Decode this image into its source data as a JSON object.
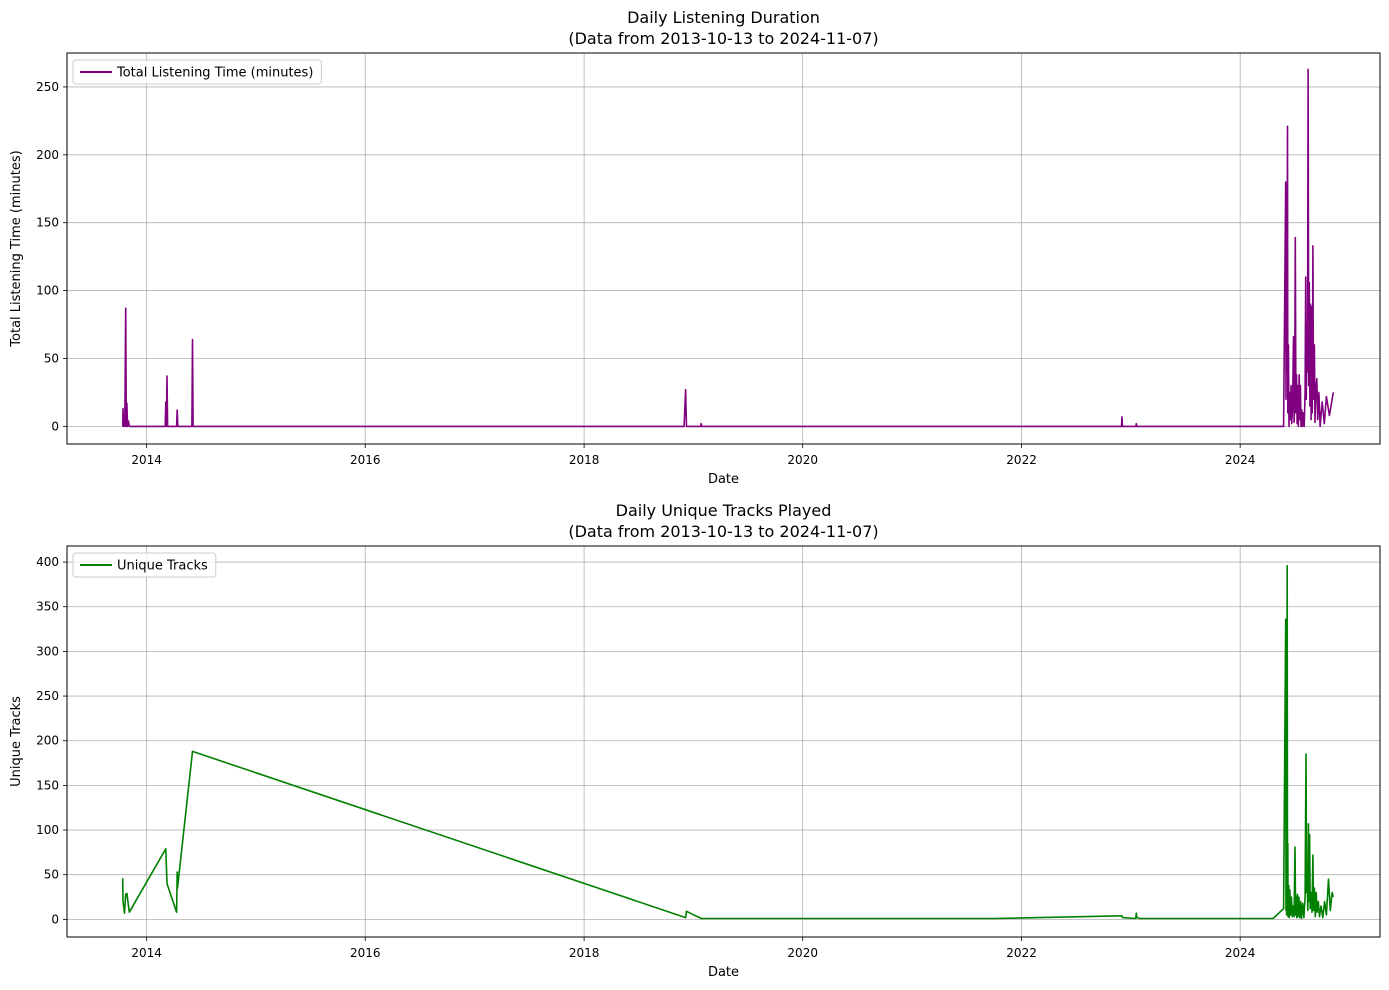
{
  "chart_data": [
    {
      "type": "line",
      "title_line1": "Daily Listening Duration",
      "title_line2": "(Data from 2013-10-13 to 2024-11-07)",
      "xlabel": "Date",
      "ylabel": "Total Listening Time (minutes)",
      "xlim": [
        "2013-04-10",
        "2025-04-12"
      ],
      "ylim": [
        -13,
        275
      ],
      "x_ticks": [
        "2014",
        "2016",
        "2018",
        "2020",
        "2022",
        "2024"
      ],
      "y_ticks": [
        0,
        50,
        100,
        150,
        200,
        250
      ],
      "grid": true,
      "legend_position": "upper left",
      "series": [
        {
          "name": "Total Listening Time (minutes)",
          "color": "#800080",
          "points": [
            [
              "2013-10-13",
              0
            ],
            [
              "2013-10-14",
              13
            ],
            [
              "2013-10-16",
              0
            ],
            [
              "2013-10-18",
              5
            ],
            [
              "2013-10-20",
              0
            ],
            [
              "2013-10-23",
              87
            ],
            [
              "2013-10-25",
              0
            ],
            [
              "2013-10-27",
              17
            ],
            [
              "2013-10-29",
              0
            ],
            [
              "2013-11-01",
              4
            ],
            [
              "2013-11-04",
              0
            ],
            [
              "2014-03-04",
              0
            ],
            [
              "2014-03-06",
              18
            ],
            [
              "2014-03-08",
              0
            ],
            [
              "2014-03-10",
              37
            ],
            [
              "2014-03-12",
              0
            ],
            [
              "2014-04-11",
              0
            ],
            [
              "2014-04-13",
              12
            ],
            [
              "2014-04-15",
              0
            ],
            [
              "2014-06-01",
              0
            ],
            [
              "2014-06-03",
              64
            ],
            [
              "2014-06-05",
              0
            ],
            [
              "2018-12-01",
              0
            ],
            [
              "2018-12-06",
              27
            ],
            [
              "2018-12-09",
              0
            ],
            [
              "2019-01-25",
              0
            ],
            [
              "2019-01-27",
              2
            ],
            [
              "2019-01-29",
              0
            ],
            [
              "2022-12-01",
              0
            ],
            [
              "2022-12-02",
              7
            ],
            [
              "2022-12-04",
              0
            ],
            [
              "2023-01-18",
              0
            ],
            [
              "2023-01-19",
              2
            ],
            [
              "2023-01-21",
              0
            ],
            [
              "2024-05-25",
              0
            ],
            [
              "2024-06-01",
              180
            ],
            [
              "2024-06-02",
              20
            ],
            [
              "2024-06-04",
              161
            ],
            [
              "2024-06-05",
              40
            ],
            [
              "2024-06-07",
              221
            ],
            [
              "2024-06-08",
              10
            ],
            [
              "2024-06-10",
              60
            ],
            [
              "2024-06-12",
              0
            ],
            [
              "2024-06-14",
              25
            ],
            [
              "2024-06-16",
              5
            ],
            [
              "2024-06-19",
              30
            ],
            [
              "2024-06-21",
              2
            ],
            [
              "2024-06-24",
              15
            ],
            [
              "2024-06-27",
              66
            ],
            [
              "2024-06-29",
              3
            ],
            [
              "2024-07-01",
              20
            ],
            [
              "2024-07-03",
              139
            ],
            [
              "2024-07-05",
              10
            ],
            [
              "2024-07-07",
              38
            ],
            [
              "2024-07-09",
              2
            ],
            [
              "2024-07-11",
              30
            ],
            [
              "2024-07-13",
              0
            ],
            [
              "2024-07-16",
              38
            ],
            [
              "2024-07-18",
              5
            ],
            [
              "2024-07-20",
              30
            ],
            [
              "2024-07-22",
              0
            ],
            [
              "2024-07-25",
              12
            ],
            [
              "2024-07-27",
              0
            ],
            [
              "2024-07-30",
              10
            ],
            [
              "2024-08-02",
              0
            ],
            [
              "2024-08-05",
              25
            ],
            [
              "2024-08-07",
              110
            ],
            [
              "2024-08-09",
              20
            ],
            [
              "2024-08-11",
              76
            ],
            [
              "2024-08-13",
              40
            ],
            [
              "2024-08-15",
              263
            ],
            [
              "2024-08-17",
              30
            ],
            [
              "2024-08-19",
              106
            ],
            [
              "2024-08-21",
              15
            ],
            [
              "2024-08-23",
              90
            ],
            [
              "2024-08-25",
              5
            ],
            [
              "2024-08-27",
              88
            ],
            [
              "2024-08-29",
              10
            ],
            [
              "2024-08-31",
              133
            ],
            [
              "2024-09-02",
              20
            ],
            [
              "2024-09-05",
              60
            ],
            [
              "2024-09-07",
              3
            ],
            [
              "2024-09-10",
              28
            ],
            [
              "2024-09-13",
              35
            ],
            [
              "2024-09-16",
              5
            ],
            [
              "2024-09-20",
              25
            ],
            [
              "2024-09-24",
              0
            ],
            [
              "2024-10-01",
              18
            ],
            [
              "2024-10-08",
              2
            ],
            [
              "2024-10-15",
              22
            ],
            [
              "2024-10-25",
              8
            ],
            [
              "2024-11-07",
              25
            ]
          ]
        }
      ]
    },
    {
      "type": "line",
      "title_line1": "Daily Unique Tracks Played",
      "title_line2": "(Data from 2013-10-13 to 2024-11-07)",
      "xlabel": "Date",
      "ylabel": "Unique Tracks",
      "xlim": [
        "2013-04-10",
        "2025-04-12"
      ],
      "ylim": [
        -19.75,
        418
      ],
      "x_ticks": [
        "2014",
        "2016",
        "2018",
        "2020",
        "2022",
        "2024"
      ],
      "y_ticks": [
        0,
        50,
        100,
        150,
        200,
        250,
        300,
        350,
        400
      ],
      "grid": true,
      "legend_position": "upper left",
      "series": [
        {
          "name": "Unique Tracks",
          "color": "#008000",
          "points": [
            [
              "2013-10-13",
              46
            ],
            [
              "2013-10-14",
              20
            ],
            [
              "2013-10-19",
              7
            ],
            [
              "2013-10-23",
              28
            ],
            [
              "2013-10-27",
              29
            ],
            [
              "2013-11-04",
              8
            ],
            [
              "2014-03-06",
              79
            ],
            [
              "2014-03-10",
              40
            ],
            [
              "2014-04-11",
              8
            ],
            [
              "2014-04-13",
              53
            ],
            [
              "2014-04-14",
              35
            ],
            [
              "2014-06-03",
              188
            ],
            [
              "2018-12-06",
              2
            ],
            [
              "2018-12-09",
              9
            ],
            [
              "2019-01-27",
              1
            ],
            [
              "2021-10-01",
              1
            ],
            [
              "2022-12-02",
              4
            ],
            [
              "2022-12-04",
              2
            ],
            [
              "2023-01-17",
              1
            ],
            [
              "2023-01-19",
              7
            ],
            [
              "2023-01-21",
              2
            ],
            [
              "2023-02-01",
              1
            ],
            [
              "2024-04-20",
              1
            ],
            [
              "2024-05-25",
              12
            ],
            [
              "2024-06-01",
              336
            ],
            [
              "2024-06-02",
              10
            ],
            [
              "2024-06-03",
              178
            ],
            [
              "2024-06-04",
              5
            ],
            [
              "2024-06-06",
              396
            ],
            [
              "2024-06-07",
              20
            ],
            [
              "2024-06-08",
              85
            ],
            [
              "2024-06-09",
              3
            ],
            [
              "2024-06-11",
              38
            ],
            [
              "2024-06-13",
              2
            ],
            [
              "2024-06-15",
              33
            ],
            [
              "2024-06-17",
              5
            ],
            [
              "2024-06-20",
              25
            ],
            [
              "2024-06-23",
              3
            ],
            [
              "2024-06-26",
              15
            ],
            [
              "2024-06-29",
              3
            ],
            [
              "2024-07-02",
              81
            ],
            [
              "2024-07-04",
              5
            ],
            [
              "2024-07-06",
              25
            ],
            [
              "2024-07-08",
              2
            ],
            [
              "2024-07-10",
              28
            ],
            [
              "2024-07-12",
              3
            ],
            [
              "2024-07-15",
              25
            ],
            [
              "2024-07-18",
              2
            ],
            [
              "2024-07-21",
              20
            ],
            [
              "2024-07-24",
              1
            ],
            [
              "2024-07-28",
              18
            ],
            [
              "2024-08-01",
              2
            ],
            [
              "2024-08-05",
              25
            ],
            [
              "2024-08-08",
              185
            ],
            [
              "2024-08-10",
              30
            ],
            [
              "2024-08-12",
              49
            ],
            [
              "2024-08-14",
              10
            ],
            [
              "2024-08-16",
              107
            ],
            [
              "2024-08-18",
              20
            ],
            [
              "2024-08-20",
              95
            ],
            [
              "2024-08-22",
              12
            ],
            [
              "2024-08-25",
              30
            ],
            [
              "2024-08-28",
              8
            ],
            [
              "2024-08-31",
              72
            ],
            [
              "2024-09-02",
              10
            ],
            [
              "2024-09-05",
              35
            ],
            [
              "2024-09-08",
              3
            ],
            [
              "2024-09-11",
              30
            ],
            [
              "2024-09-14",
              8
            ],
            [
              "2024-09-18",
              20
            ],
            [
              "2024-09-22",
              3
            ],
            [
              "2024-09-27",
              15
            ],
            [
              "2024-10-03",
              2
            ],
            [
              "2024-10-09",
              20
            ],
            [
              "2024-10-15",
              5
            ],
            [
              "2024-10-22",
              45
            ],
            [
              "2024-10-28",
              10
            ],
            [
              "2024-11-03",
              30
            ],
            [
              "2024-11-07",
              25
            ]
          ]
        }
      ]
    }
  ]
}
